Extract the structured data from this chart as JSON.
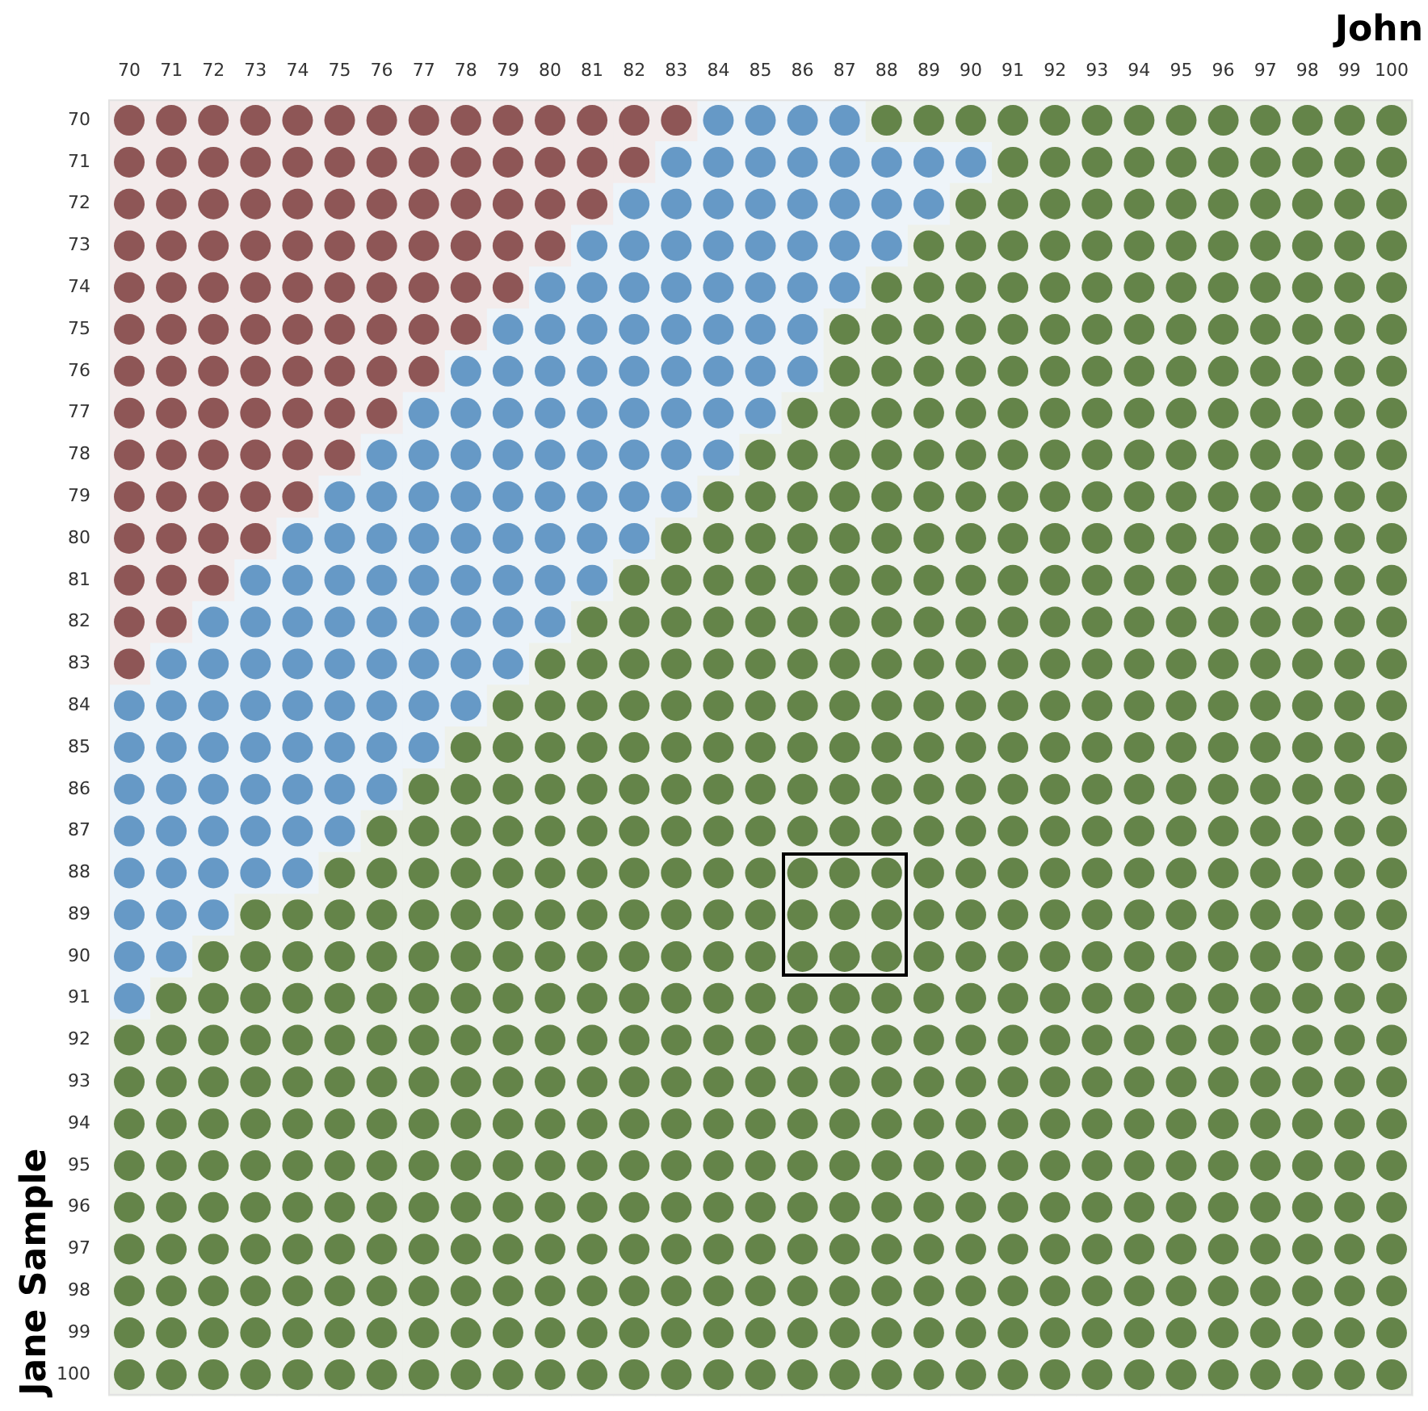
{
  "chart_data": {
    "type": "scatter",
    "title": "John",
    "ylabel": "Jane Sample",
    "marker": "circle",
    "xlim": [
      69.5,
      100.5
    ],
    "ylim": [
      100.5,
      69.5
    ],
    "xticks": [
      70,
      71,
      72,
      73,
      74,
      75,
      76,
      77,
      78,
      79,
      80,
      81,
      82,
      83,
      84,
      85,
      86,
      87,
      88,
      89,
      90,
      91,
      92,
      93,
      94,
      95,
      96,
      97,
      98,
      99,
      100
    ],
    "yticks": [
      70,
      71,
      72,
      73,
      74,
      75,
      76,
      77,
      78,
      79,
      80,
      81,
      82,
      83,
      84,
      85,
      86,
      87,
      88,
      89,
      90,
      91,
      92,
      93,
      94,
      95,
      96,
      97,
      98,
      99,
      100
    ],
    "series": [
      {
        "color": "#8e5656",
        "x": [
          70,
          71,
          72,
          73,
          74,
          75,
          76,
          77,
          78,
          79,
          80,
          81,
          82,
          83,
          70,
          71,
          72,
          73,
          74,
          75,
          76,
          77,
          78,
          79,
          80,
          81,
          82,
          70,
          71,
          72,
          73,
          74,
          75,
          76,
          77,
          78,
          79,
          80,
          81,
          70,
          71,
          72,
          73,
          74,
          75,
          76,
          77,
          78,
          79,
          80,
          70,
          71,
          72,
          73,
          74,
          75,
          76,
          77,
          78,
          79,
          70,
          71,
          72,
          73,
          74,
          75,
          76,
          77,
          78,
          70,
          71,
          72,
          73,
          74,
          75,
          76,
          77,
          70,
          71,
          72,
          73,
          74,
          75,
          76,
          70,
          71,
          72,
          73,
          74,
          75,
          70,
          71,
          72,
          73,
          74,
          70,
          71,
          72,
          73,
          70,
          71,
          72,
          70,
          71,
          70
        ],
        "values": [
          70,
          70,
          70,
          70,
          70,
          70,
          70,
          70,
          70,
          70,
          70,
          70,
          70,
          70,
          71,
          71,
          71,
          71,
          71,
          71,
          71,
          71,
          71,
          71,
          71,
          71,
          71,
          72,
          72,
          72,
          72,
          72,
          72,
          72,
          72,
          72,
          72,
          72,
          72,
          73,
          73,
          73,
          73,
          73,
          73,
          73,
          73,
          73,
          73,
          73,
          74,
          74,
          74,
          74,
          74,
          74,
          74,
          74,
          74,
          74,
          75,
          75,
          75,
          75,
          75,
          75,
          75,
          75,
          75,
          76,
          76,
          76,
          76,
          76,
          76,
          76,
          76,
          77,
          77,
          77,
          77,
          77,
          77,
          77,
          78,
          78,
          78,
          78,
          78,
          78,
          79,
          79,
          79,
          79,
          79,
          80,
          80,
          80,
          80,
          81,
          81,
          81,
          82,
          82,
          83
        ]
      },
      {
        "color": "#6699c6",
        "x": [
          84,
          85,
          86,
          87,
          83,
          84,
          85,
          86,
          87,
          88,
          89,
          90,
          82,
          83,
          84,
          85,
          86,
          87,
          88,
          89,
          81,
          82,
          83,
          84,
          85,
          86,
          87,
          88,
          80,
          81,
          82,
          83,
          84,
          85,
          86,
          87,
          79,
          80,
          81,
          82,
          83,
          84,
          85,
          86,
          78,
          79,
          80,
          81,
          82,
          83,
          84,
          85,
          86,
          77,
          78,
          79,
          80,
          81,
          82,
          83,
          84,
          85,
          76,
          77,
          78,
          79,
          80,
          81,
          82,
          83,
          84,
          75,
          76,
          77,
          78,
          79,
          80,
          81,
          82,
          83,
          74,
          75,
          76,
          77,
          78,
          79,
          80,
          81,
          82,
          73,
          74,
          75,
          76,
          77,
          78,
          79,
          80,
          81,
          72,
          73,
          74,
          75,
          76,
          77,
          78,
          79,
          80,
          71,
          72,
          73,
          74,
          75,
          76,
          77,
          78,
          79,
          70,
          71,
          72,
          73,
          74,
          75,
          76,
          77,
          78,
          70,
          71,
          72,
          73,
          74,
          75,
          76,
          77,
          70,
          71,
          72,
          73,
          74,
          75,
          76,
          70,
          71,
          72,
          73,
          74,
          75,
          70,
          71,
          72,
          73,
          74,
          70,
          71,
          72,
          70,
          71,
          70
        ],
        "values": [
          70,
          70,
          70,
          70,
          71,
          71,
          71,
          71,
          71,
          71,
          71,
          71,
          72,
          72,
          72,
          72,
          72,
          72,
          72,
          72,
          73,
          73,
          73,
          73,
          73,
          73,
          73,
          73,
          74,
          74,
          74,
          74,
          74,
          74,
          74,
          74,
          75,
          75,
          75,
          75,
          75,
          75,
          75,
          75,
          76,
          76,
          76,
          76,
          76,
          76,
          76,
          76,
          76,
          77,
          77,
          77,
          77,
          77,
          77,
          77,
          77,
          77,
          78,
          78,
          78,
          78,
          78,
          78,
          78,
          78,
          78,
          79,
          79,
          79,
          79,
          79,
          79,
          79,
          79,
          79,
          80,
          80,
          80,
          80,
          80,
          80,
          80,
          80,
          80,
          81,
          81,
          81,
          81,
          81,
          81,
          81,
          81,
          81,
          82,
          82,
          82,
          82,
          82,
          82,
          82,
          82,
          82,
          83,
          83,
          83,
          83,
          83,
          83,
          83,
          83,
          83,
          84,
          84,
          84,
          84,
          84,
          84,
          84,
          84,
          84,
          85,
          85,
          85,
          85,
          85,
          85,
          85,
          85,
          86,
          86,
          86,
          86,
          86,
          86,
          86,
          87,
          87,
          87,
          87,
          87,
          87,
          88,
          88,
          88,
          88,
          88,
          89,
          89,
          89,
          90,
          90,
          91
        ]
      },
      {
        "color": "#648449",
        "x": [
          88,
          89,
          90,
          91,
          92,
          93,
          94,
          95,
          96,
          97,
          98,
          99,
          100,
          91,
          92,
          93,
          94,
          95,
          96,
          97,
          98,
          99,
          100,
          90,
          91,
          92,
          93,
          94,
          95,
          96,
          97,
          98,
          99,
          100,
          89,
          90,
          91,
          92,
          93,
          94,
          95,
          96,
          97,
          98,
          99,
          100,
          88,
          89,
          90,
          91,
          92,
          93,
          94,
          95,
          96,
          97,
          98,
          99,
          100,
          87,
          88,
          89,
          90,
          91,
          92,
          93,
          94,
          95,
          96,
          97,
          98,
          99,
          100,
          87,
          88,
          89,
          90,
          91,
          92,
          93,
          94,
          95,
          96,
          97,
          98,
          99,
          100,
          86,
          87,
          88,
          89,
          90,
          91,
          92,
          93,
          94,
          95,
          96,
          97,
          98,
          99,
          100,
          85,
          86,
          87,
          88,
          89,
          90,
          91,
          92,
          93,
          94,
          95,
          96,
          97,
          98,
          99,
          100,
          84,
          85,
          86,
          87,
          88,
          89,
          90,
          91,
          92,
          93,
          94,
          95,
          96,
          97,
          98,
          99,
          100,
          83,
          84,
          85,
          86,
          87,
          88,
          89,
          90,
          91,
          92,
          93,
          94,
          95,
          96,
          97,
          98,
          99,
          100,
          82,
          83,
          84,
          85,
          86,
          87,
          88,
          89,
          90,
          91,
          92,
          93,
          94,
          95,
          96,
          97,
          98,
          99,
          100,
          81,
          82,
          83,
          84,
          85,
          86,
          87,
          88,
          89,
          90,
          91,
          92,
          93,
          94,
          95,
          96,
          97,
          98,
          99,
          100,
          80,
          81,
          82,
          83,
          84,
          85,
          86,
          87,
          88,
          89,
          90,
          91,
          92,
          93,
          94,
          95,
          96,
          97,
          98,
          99,
          100,
          79,
          80,
          81,
          82,
          83,
          84,
          85,
          86,
          87,
          88,
          89,
          90,
          91,
          92,
          93,
          94,
          95,
          96,
          97,
          98,
          99,
          100,
          78,
          79,
          80,
          81,
          82,
          83,
          84,
          85,
          86,
          87,
          88,
          89,
          90,
          91,
          92,
          93,
          94,
          95,
          96,
          97,
          98,
          99,
          100,
          77,
          78,
          79,
          80,
          81,
          82,
          83,
          84,
          85,
          86,
          87,
          88,
          89,
          90,
          91,
          92,
          93,
          94,
          95,
          96,
          97,
          98,
          99,
          100,
          76,
          77,
          78,
          79,
          80,
          81,
          82,
          83,
          84,
          85,
          86,
          87,
          88,
          89,
          90,
          91,
          92,
          93,
          94,
          95,
          96,
          97,
          98,
          99,
          100,
          75,
          76,
          77,
          78,
          79,
          80,
          81,
          82,
          83,
          84,
          85,
          86,
          87,
          88,
          89,
          90,
          91,
          92,
          93,
          94,
          95,
          96,
          97,
          98,
          99,
          100,
          73,
          74,
          75,
          76,
          77,
          78,
          79,
          80,
          81,
          82,
          83,
          84,
          85,
          86,
          87,
          88,
          89,
          90,
          91,
          92,
          93,
          94,
          95,
          96,
          97,
          98,
          99,
          100,
          72,
          73,
          74,
          75,
          76,
          77,
          78,
          79,
          80,
          81,
          82,
          83,
          84,
          85,
          86,
          87,
          88,
          89,
          90,
          91,
          92,
          93,
          94,
          95,
          96,
          97,
          98,
          99,
          100,
          71,
          72,
          73,
          74,
          75,
          76,
          77,
          78,
          79,
          80,
          81,
          82,
          83,
          84,
          85,
          86,
          87,
          88,
          89,
          90,
          91,
          92,
          93,
          94,
          95,
          96,
          97,
          98,
          99,
          100,
          70,
          71,
          72,
          73,
          74,
          75,
          76,
          77,
          78,
          79,
          80,
          81,
          82,
          83,
          84,
          85,
          86,
          87,
          88,
          89,
          90,
          91,
          92,
          93,
          94,
          95,
          96,
          97,
          98,
          99,
          100,
          70,
          71,
          72,
          73,
          74,
          75,
          76,
          77,
          78,
          79,
          80,
          81,
          82,
          83,
          84,
          85,
          86,
          87,
          88,
          89,
          90,
          91,
          92,
          93,
          94,
          95,
          96,
          97,
          98,
          99,
          100,
          70,
          71,
          72,
          73,
          74,
          75,
          76,
          77,
          78,
          79,
          80,
          81,
          82,
          83,
          84,
          85,
          86,
          87,
          88,
          89,
          90,
          91,
          92,
          93,
          94,
          95,
          96,
          97,
          98,
          99,
          100,
          70,
          71,
          72,
          73,
          74,
          75,
          76,
          77,
          78,
          79,
          80,
          81,
          82,
          83,
          84,
          85,
          86,
          87,
          88,
          89,
          90,
          91,
          92,
          93,
          94,
          95,
          96,
          97,
          98,
          99,
          100,
          70,
          71,
          72,
          73,
          74,
          75,
          76,
          77,
          78,
          79,
          80,
          81,
          82,
          83,
          84,
          85,
          86,
          87,
          88,
          89,
          90,
          91,
          92,
          93,
          94,
          95,
          96,
          97,
          98,
          99,
          100,
          70,
          71,
          72,
          73,
          74,
          75,
          76,
          77,
          78,
          79,
          80,
          81,
          82,
          83,
          84,
          85,
          86,
          87,
          88,
          89,
          90,
          91,
          92,
          93,
          94,
          95,
          96,
          97,
          98,
          99,
          100,
          70,
          71,
          72,
          73,
          74,
          75,
          76,
          77,
          78,
          79,
          80,
          81,
          82,
          83,
          84,
          85,
          86,
          87,
          88,
          89,
          90,
          91,
          92,
          93,
          94,
          95,
          96,
          97,
          98,
          99,
          100,
          70,
          71,
          72,
          73,
          74,
          75,
          76,
          77,
          78,
          79,
          80,
          81,
          82,
          83,
          84,
          85,
          86,
          87,
          88,
          89,
          90,
          91,
          92,
          93,
          94,
          95,
          96,
          97,
          98,
          99,
          100,
          70,
          71,
          72,
          73,
          74,
          75,
          76,
          77,
          78,
          79,
          80,
          81,
          82,
          83,
          84,
          85,
          86,
          87,
          88,
          89,
          90,
          91,
          92,
          93,
          94,
          95,
          96,
          97,
          98,
          99,
          100
        ],
        "values": [
          70,
          70,
          70,
          70,
          70,
          70,
          70,
          70,
          70,
          70,
          70,
          70,
          70,
          71,
          71,
          71,
          71,
          71,
          71,
          71,
          71,
          71,
          71,
          72,
          72,
          72,
          72,
          72,
          72,
          72,
          72,
          72,
          72,
          72,
          73,
          73,
          73,
          73,
          73,
          73,
          73,
          73,
          73,
          73,
          73,
          73,
          74,
          74,
          74,
          74,
          74,
          74,
          74,
          74,
          74,
          74,
          74,
          74,
          74,
          75,
          75,
          75,
          75,
          75,
          75,
          75,
          75,
          75,
          75,
          75,
          75,
          75,
          75,
          76,
          76,
          76,
          76,
          76,
          76,
          76,
          76,
          76,
          76,
          76,
          76,
          76,
          76,
          77,
          77,
          77,
          77,
          77,
          77,
          77,
          77,
          77,
          77,
          77,
          77,
          77,
          77,
          77,
          78,
          78,
          78,
          78,
          78,
          78,
          78,
          78,
          78,
          78,
          78,
          78,
          78,
          78,
          78,
          78,
          79,
          79,
          79,
          79,
          79,
          79,
          79,
          79,
          79,
          79,
          79,
          79,
          79,
          79,
          79,
          79,
          79,
          80,
          80,
          80,
          80,
          80,
          80,
          80,
          80,
          80,
          80,
          80,
          80,
          80,
          80,
          80,
          80,
          80,
          80,
          81,
          81,
          81,
          81,
          81,
          81,
          81,
          81,
          81,
          81,
          81,
          81,
          81,
          81,
          81,
          81,
          81,
          81,
          81,
          82,
          82,
          82,
          82,
          82,
          82,
          82,
          82,
          82,
          82,
          82,
          82,
          82,
          82,
          82,
          82,
          82,
          82,
          82,
          82,
          83,
          83,
          83,
          83,
          83,
          83,
          83,
          83,
          83,
          83,
          83,
          83,
          83,
          83,
          83,
          83,
          83,
          83,
          83,
          83,
          83,
          84,
          84,
          84,
          84,
          84,
          84,
          84,
          84,
          84,
          84,
          84,
          84,
          84,
          84,
          84,
          84,
          84,
          84,
          84,
          84,
          84,
          84,
          85,
          85,
          85,
          85,
          85,
          85,
          85,
          85,
          85,
          85,
          85,
          85,
          85,
          85,
          85,
          85,
          85,
          85,
          85,
          85,
          85,
          85,
          85,
          86,
          86,
          86,
          86,
          86,
          86,
          86,
          86,
          86,
          86,
          86,
          86,
          86,
          86,
          86,
          86,
          86,
          86,
          86,
          86,
          86,
          86,
          86,
          86,
          87,
          87,
          87,
          87,
          87,
          87,
          87,
          87,
          87,
          87,
          87,
          87,
          87,
          87,
          87,
          87,
          87,
          87,
          87,
          87,
          87,
          87,
          87,
          87,
          87,
          88,
          88,
          88,
          88,
          88,
          88,
          88,
          88,
          88,
          88,
          88,
          88,
          88,
          88,
          88,
          88,
          88,
          88,
          88,
          88,
          88,
          88,
          88,
          88,
          88,
          88,
          89,
          89,
          89,
          89,
          89,
          89,
          89,
          89,
          89,
          89,
          89,
          89,
          89,
          89,
          89,
          89,
          89,
          89,
          89,
          89,
          89,
          89,
          89,
          89,
          89,
          89,
          89,
          89,
          90,
          90,
          90,
          90,
          90,
          90,
          90,
          90,
          90,
          90,
          90,
          90,
          90,
          90,
          90,
          90,
          90,
          90,
          90,
          90,
          90,
          90,
          90,
          90,
          90,
          90,
          90,
          90,
          90,
          91,
          91,
          91,
          91,
          91,
          91,
          91,
          91,
          91,
          91,
          91,
          91,
          91,
          91,
          91,
          91,
          91,
          91,
          91,
          91,
          91,
          91,
          91,
          91,
          91,
          91,
          91,
          91,
          91,
          91,
          92,
          92,
          92,
          92,
          92,
          92,
          92,
          92,
          92,
          92,
          92,
          92,
          92,
          92,
          92,
          92,
          92,
          92,
          92,
          92,
          92,
          92,
          92,
          92,
          92,
          92,
          92,
          92,
          92,
          92,
          92,
          93,
          93,
          93,
          93,
          93,
          93,
          93,
          93,
          93,
          93,
          93,
          93,
          93,
          93,
          93,
          93,
          93,
          93,
          93,
          93,
          93,
          93,
          93,
          93,
          93,
          93,
          93,
          93,
          93,
          93,
          93,
          94,
          94,
          94,
          94,
          94,
          94,
          94,
          94,
          94,
          94,
          94,
          94,
          94,
          94,
          94,
          94,
          94,
          94,
          94,
          94,
          94,
          94,
          94,
          94,
          94,
          94,
          94,
          94,
          94,
          94,
          94,
          95,
          95,
          95,
          95,
          95,
          95,
          95,
          95,
          95,
          95,
          95,
          95,
          95,
          95,
          95,
          95,
          95,
          95,
          95,
          95,
          95,
          95,
          95,
          95,
          95,
          95,
          95,
          95,
          95,
          95,
          95,
          96,
          96,
          96,
          96,
          96,
          96,
          96,
          96,
          96,
          96,
          96,
          96,
          96,
          96,
          96,
          96,
          96,
          96,
          96,
          96,
          96,
          96,
          96,
          96,
          96,
          96,
          96,
          96,
          96,
          96,
          96,
          97,
          97,
          97,
          97,
          97,
          97,
          97,
          97,
          97,
          97,
          97,
          97,
          97,
          97,
          97,
          97,
          97,
          97,
          97,
          97,
          97,
          97,
          97,
          97,
          97,
          97,
          97,
          97,
          97,
          97,
          97,
          98,
          98,
          98,
          98,
          98,
          98,
          98,
          98,
          98,
          98,
          98,
          98,
          98,
          98,
          98,
          98,
          98,
          98,
          98,
          98,
          98,
          98,
          98,
          98,
          98,
          98,
          98,
          98,
          98,
          98,
          98,
          99,
          99,
          99,
          99,
          99,
          99,
          99,
          99,
          99,
          99,
          99,
          99,
          99,
          99,
          99,
          99,
          99,
          99,
          99,
          99,
          99,
          99,
          99,
          99,
          99,
          99,
          99,
          99,
          99,
          99,
          99,
          100,
          100,
          100,
          100,
          100,
          100,
          100,
          100,
          100,
          100,
          100,
          100,
          100,
          100,
          100,
          100,
          100,
          100,
          100,
          100,
          100,
          100,
          100,
          100,
          100,
          100,
          100,
          100,
          100,
          100,
          100
        ]
      }
    ]
  }
}
